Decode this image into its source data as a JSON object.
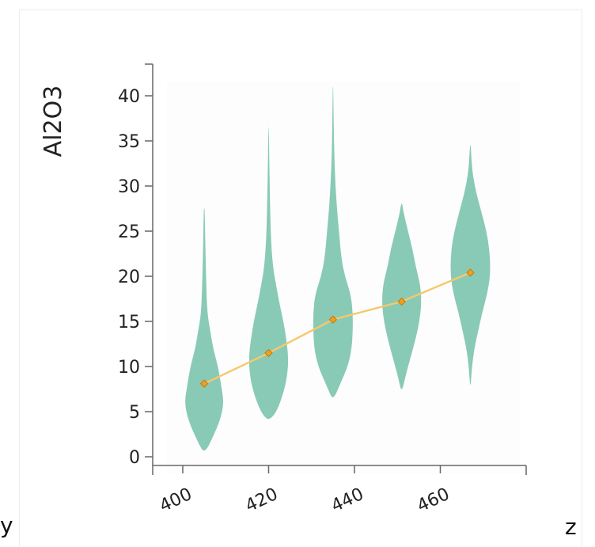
{
  "chart_data": {
    "type": "violin",
    "ylabel": "Al2O3",
    "xlabel": "",
    "ylim": [
      0,
      42
    ],
    "xlim": [
      393,
      480
    ],
    "x_ticks": [
      400,
      420,
      440,
      460
    ],
    "y_ticks": [
      0,
      5,
      10,
      15,
      20,
      25,
      30,
      35,
      40
    ],
    "grid": false,
    "colors": {
      "violin": "#7fc6b1",
      "trend_line": "#f5c96b",
      "marker": "#f0a020",
      "marker_edge": "#c77a00"
    },
    "violins": [
      {
        "x": 405,
        "mean": 8.1,
        "min": 0.7,
        "max": 27.5,
        "profile": [
          [
            0.7,
            0.1
          ],
          [
            2,
            0.4
          ],
          [
            4,
            0.8
          ],
          [
            6,
            1.0
          ],
          [
            8,
            0.85
          ],
          [
            10,
            0.7
          ],
          [
            12,
            0.45
          ],
          [
            14,
            0.3
          ],
          [
            16,
            0.15
          ],
          [
            20,
            0.09
          ],
          [
            24,
            0.05
          ],
          [
            27.5,
            0.02
          ]
        ]
      },
      {
        "x": 420,
        "mean": 11.5,
        "min": 4.2,
        "max": 36.5,
        "profile": [
          [
            4.2,
            0.1
          ],
          [
            5,
            0.4
          ],
          [
            7,
            0.75
          ],
          [
            9,
            0.95
          ],
          [
            11,
            1.0
          ],
          [
            13,
            0.9
          ],
          [
            15,
            0.75
          ],
          [
            17,
            0.55
          ],
          [
            19,
            0.38
          ],
          [
            21,
            0.22
          ],
          [
            24,
            0.12
          ],
          [
            28,
            0.07
          ],
          [
            32,
            0.04
          ],
          [
            36.5,
            0.01
          ]
        ]
      },
      {
        "x": 435,
        "mean": 15.2,
        "min": 6.6,
        "max": 41.0,
        "profile": [
          [
            6.6,
            0.08
          ],
          [
            8,
            0.35
          ],
          [
            10,
            0.75
          ],
          [
            12,
            0.95
          ],
          [
            14,
            1.0
          ],
          [
            16,
            1.0
          ],
          [
            18,
            0.9
          ],
          [
            20,
            0.6
          ],
          [
            22,
            0.42
          ],
          [
            25,
            0.3
          ],
          [
            28,
            0.18
          ],
          [
            32,
            0.08
          ],
          [
            36,
            0.04
          ],
          [
            41,
            0.01
          ]
        ]
      },
      {
        "x": 451,
        "mean": 17.2,
        "min": 7.5,
        "max": 28.0,
        "profile": [
          [
            7.5,
            0.05
          ],
          [
            9,
            0.2
          ],
          [
            11,
            0.45
          ],
          [
            13,
            0.7
          ],
          [
            15,
            0.9
          ],
          [
            17,
            1.0
          ],
          [
            19,
            0.95
          ],
          [
            21,
            0.72
          ],
          [
            23,
            0.55
          ],
          [
            25,
            0.32
          ],
          [
            27,
            0.1
          ],
          [
            28,
            0.03
          ]
        ]
      },
      {
        "x": 467,
        "mean": 20.4,
        "min": 8.0,
        "max": 34.5,
        "profile": [
          [
            8,
            0.02
          ],
          [
            10,
            0.08
          ],
          [
            12,
            0.2
          ],
          [
            14,
            0.4
          ],
          [
            16,
            0.6
          ],
          [
            18,
            0.85
          ],
          [
            20,
            1.0
          ],
          [
            22,
            1.0
          ],
          [
            24,
            0.9
          ],
          [
            26,
            0.7
          ],
          [
            28,
            0.45
          ],
          [
            30,
            0.22
          ],
          [
            32,
            0.08
          ],
          [
            34.5,
            0.02
          ]
        ]
      }
    ],
    "trend_line": {
      "x": [
        405,
        420,
        435,
        451,
        467
      ],
      "y": [
        8.1,
        11.5,
        15.2,
        17.2,
        20.4
      ]
    }
  },
  "corner_labels": {
    "left": "y",
    "right": "z"
  }
}
